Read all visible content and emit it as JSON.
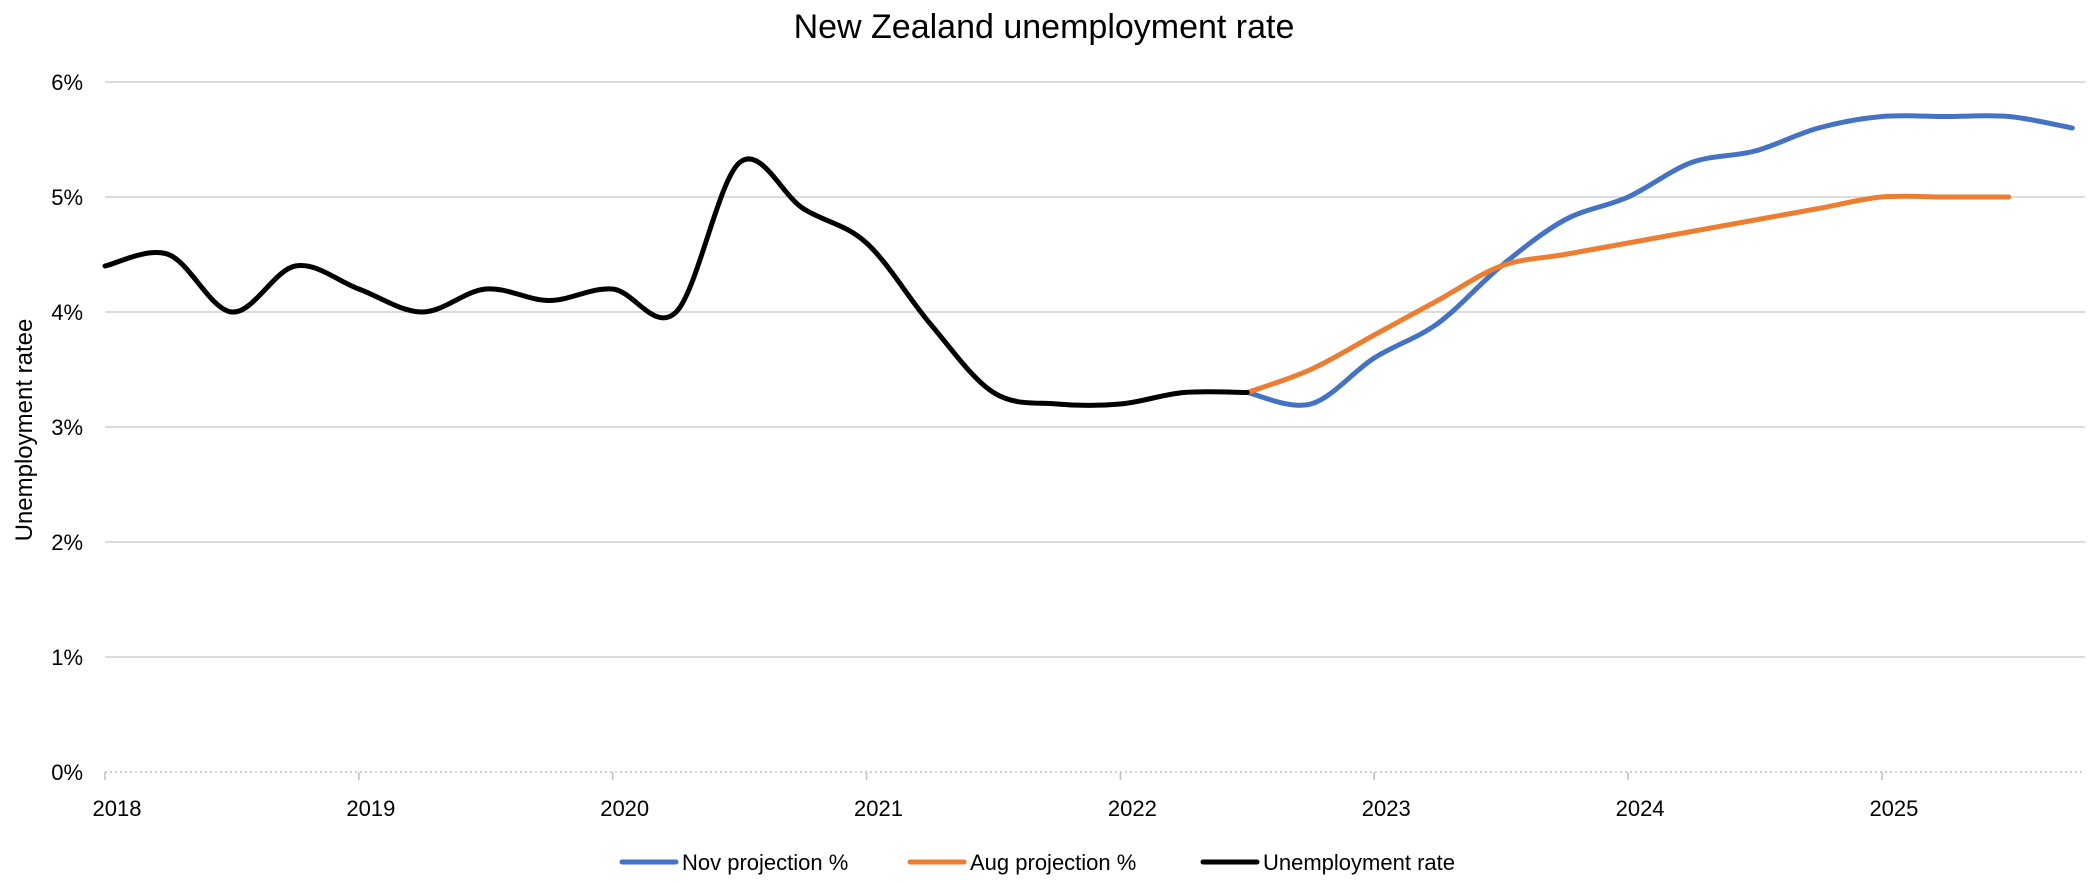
{
  "chart_data": {
    "type": "line",
    "title": "New Zealand unemployment rate",
    "xlabel": "",
    "ylabel": "Unemployment  ratee",
    "xlim": [
      2018,
      2025.8
    ],
    "ylim": [
      0,
      6
    ],
    "y_ticks": [
      0,
      1,
      2,
      3,
      4,
      5,
      6
    ],
    "y_tick_labels": [
      "0%",
      "1%",
      "2%",
      "3%",
      "4%",
      "5%",
      "6%"
    ],
    "x_ticks": [
      2018,
      2019,
      2020,
      2021,
      2022,
      2023,
      2024,
      2025
    ],
    "x_tick_labels": [
      "2018",
      "2019",
      "2020",
      "2021",
      "2022",
      "2023",
      "2024",
      "2025"
    ],
    "grid": true,
    "legend_position": "bottom",
    "series": [
      {
        "name": "Nov projection %",
        "color": "#4472c4",
        "x": [
          2022.5,
          2022.75,
          2023.0,
          2023.25,
          2023.5,
          2023.75,
          2024.0,
          2024.25,
          2024.5,
          2024.75,
          2025.0,
          2025.25,
          2025.5,
          2025.75
        ],
        "values": [
          3.3,
          3.2,
          3.6,
          3.9,
          4.4,
          4.8,
          5.0,
          5.3,
          5.4,
          5.6,
          5.7,
          5.7,
          5.7,
          5.6
        ]
      },
      {
        "name": "Aug  projection %",
        "color": "#ed7d31",
        "x": [
          2022.5,
          2022.75,
          2023.0,
          2023.25,
          2023.5,
          2023.75,
          2024.0,
          2024.25,
          2024.5,
          2024.75,
          2025.0,
          2025.25,
          2025.5
        ],
        "values": [
          3.3,
          3.5,
          3.8,
          4.1,
          4.4,
          4.5,
          4.6,
          4.7,
          4.8,
          4.9,
          5.0,
          5.0,
          5.0
        ]
      },
      {
        "name": "Unemployment rate",
        "color": "#000000",
        "x": [
          2018.0,
          2018.25,
          2018.5,
          2018.75,
          2019.0,
          2019.25,
          2019.5,
          2019.75,
          2020.0,
          2020.25,
          2020.5,
          2020.75,
          2021.0,
          2021.25,
          2021.5,
          2021.75,
          2022.0,
          2022.25,
          2022.5
        ],
        "values": [
          4.4,
          4.5,
          4.0,
          4.4,
          4.2,
          4.0,
          4.2,
          4.1,
          4.2,
          4.0,
          5.3,
          4.9,
          4.6,
          3.9,
          3.3,
          3.2,
          3.2,
          3.3,
          3.3
        ]
      }
    ]
  }
}
